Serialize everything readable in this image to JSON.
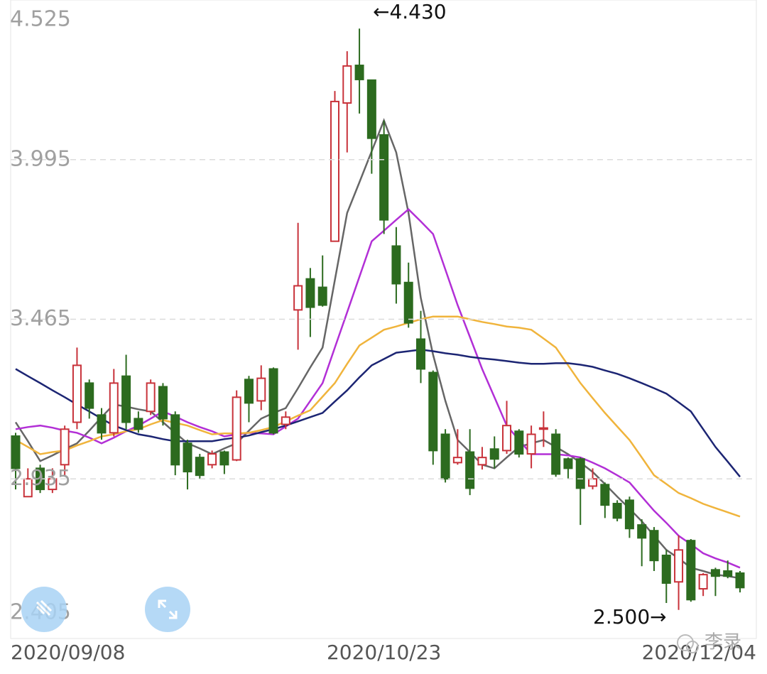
{
  "chart_data": {
    "type": "candlestick",
    "categories": [
      "2020/09/08",
      null,
      null,
      null,
      null,
      null,
      null,
      null,
      null,
      null,
      null,
      null,
      null,
      null,
      null,
      null,
      null,
      null,
      null,
      null,
      null,
      null,
      null,
      null,
      null,
      null,
      null,
      null,
      null,
      null,
      "2020/10/23",
      null,
      null,
      null,
      null,
      null,
      null,
      null,
      null,
      null,
      null,
      null,
      null,
      null,
      null,
      null,
      null,
      null,
      null,
      null,
      null,
      null,
      null,
      null,
      null,
      null,
      null,
      null,
      null,
      "2020/12/04"
    ],
    "open": [
      3.077,
      2.876,
      2.97,
      2.9,
      2.982,
      3.123,
      3.253,
      3.147,
      3.088,
      3.276,
      3.135,
      3.159,
      3.241,
      3.147,
      3.053,
      3.006,
      2.982,
      3.024,
      2.998,
      3.265,
      3.194,
      3.3,
      3.116,
      3.496,
      3.599,
      3.571,
      3.724,
      4.183,
      4.308,
      4.259,
      4.077,
      3.708,
      3.587,
      3.399,
      3.288,
      3.083,
      2.989,
      3.024,
      2.982,
      3.034,
      3.029,
      3.093,
      3.018,
      3.1,
      3.083,
      3.001,
      3.001,
      2.911,
      2.916,
      2.853,
      2.864,
      2.782,
      2.763,
      2.681,
      2.593,
      2.73,
      2.57,
      2.633,
      2.629,
      2.622
    ],
    "high": [
      3.088,
      2.97,
      2.982,
      2.97,
      3.112,
      3.371,
      3.265,
      3.17,
      3.3,
      3.347,
      3.159,
      3.265,
      3.253,
      3.159,
      3.065,
      3.018,
      3.029,
      3.029,
      3.229,
      3.277,
      3.312,
      3.305,
      3.159,
      3.785,
      3.635,
      3.677,
      4.223,
      4.355,
      4.43,
      4.259,
      4.125,
      3.771,
      3.653,
      3.493,
      3.295,
      3.1,
      3.1,
      3.1,
      3.041,
      3.076,
      3.194,
      3.1,
      3.112,
      3.159,
      3.1,
      3.006,
      3.006,
      2.97,
      2.923,
      2.864,
      2.876,
      2.801,
      2.775,
      2.699,
      2.747,
      2.735,
      2.622,
      2.64,
      2.664,
      2.629
    ],
    "low": [
      2.9,
      2.876,
      2.888,
      2.888,
      2.947,
      3.1,
      3.135,
      3.065,
      3.076,
      3.1,
      3.088,
      3.147,
      3.112,
      2.947,
      2.9,
      2.935,
      2.97,
      2.951,
      2.994,
      3.123,
      3.163,
      3.083,
      3.1,
      3.364,
      3.406,
      3.507,
      3.724,
      4.019,
      4.148,
      3.948,
      3.748,
      3.517,
      3.437,
      3.253,
      2.982,
      2.923,
      2.982,
      2.881,
      2.966,
      2.97,
      3.018,
      3.006,
      2.97,
      3.041,
      2.942,
      2.935,
      2.782,
      2.9,
      2.805,
      2.794,
      2.739,
      2.645,
      2.629,
      2.523,
      2.5,
      2.527,
      2.546,
      2.546,
      2.605,
      2.558
    ],
    "close": [
      2.97,
      2.935,
      2.9,
      2.935,
      3.1,
      3.312,
      3.17,
      3.088,
      3.253,
      3.123,
      3.1,
      3.253,
      3.135,
      2.982,
      2.959,
      2.947,
      3.018,
      2.982,
      3.206,
      3.187,
      3.269,
      3.088,
      3.14,
      3.576,
      3.505,
      3.512,
      4.188,
      4.306,
      4.261,
      4.066,
      3.795,
      3.583,
      3.453,
      3.3,
      3.029,
      2.935,
      3.006,
      2.904,
      3.006,
      3.001,
      3.112,
      3.018,
      3.083,
      3.104,
      2.951,
      2.97,
      2.904,
      2.935,
      2.848,
      2.805,
      2.77,
      2.739,
      2.664,
      2.589,
      2.699,
      2.534,
      2.617,
      2.612,
      2.612,
      2.574
    ],
    "up_color": "#c8323a",
    "down_color": "#2c6b1f",
    "series": [
      {
        "color": "#666666",
        "values": [
          3.123,
          3.06,
          2.994,
          3.013,
          3.034,
          3.053,
          3.095,
          3.14,
          3.182,
          3.175,
          3.166,
          3.159,
          3.123,
          3.088,
          3.053,
          3.036,
          3.017,
          3.036,
          3.053,
          3.095,
          3.135,
          3.154,
          3.17,
          3.236,
          3.305,
          3.371,
          3.595,
          3.818,
          3.92,
          4.023,
          4.125,
          4.019,
          3.818,
          3.536,
          3.347,
          3.194,
          3.064,
          3.024,
          2.982,
          2.97,
          3.006,
          3.041,
          3.053,
          3.064,
          3.041,
          3.017,
          2.989,
          2.958,
          2.918,
          2.876,
          2.836,
          2.794,
          2.746,
          2.699,
          2.671,
          2.64,
          2.629,
          2.617,
          2.612,
          2.605
        ]
      },
      {
        "color": "#b22fd6",
        "values": [
          3.1,
          3.107,
          3.112,
          3.105,
          3.095,
          3.088,
          3.072,
          3.053,
          3.072,
          3.093,
          3.112,
          3.135,
          3.159,
          3.142,
          3.123,
          3.107,
          3.093,
          3.076,
          3.083,
          3.088,
          3.086,
          3.083,
          3.109,
          3.135,
          3.194,
          3.253,
          3.371,
          3.488,
          3.606,
          3.724,
          3.759,
          3.795,
          3.83,
          3.79,
          3.748,
          3.63,
          3.512,
          3.406,
          3.3,
          3.206,
          3.112,
          3.064,
          3.017,
          3.017,
          3.017,
          3.013,
          3.006,
          2.989,
          2.97,
          2.947,
          2.923,
          2.876,
          2.829,
          2.789,
          2.746,
          2.718,
          2.688,
          2.671,
          2.657,
          2.64
        ]
      },
      {
        "color": "#f0b43c",
        "values": [
          3.064,
          3.041,
          3.017,
          3.024,
          3.029,
          3.046,
          3.06,
          3.076,
          3.083,
          3.093,
          3.1,
          3.116,
          3.13,
          3.121,
          3.112,
          3.097,
          3.083,
          3.086,
          3.086,
          3.088,
          3.097,
          3.107,
          3.126,
          3.145,
          3.163,
          3.208,
          3.253,
          3.317,
          3.378,
          3.404,
          3.43,
          3.441,
          3.453,
          3.465,
          3.474,
          3.474,
          3.474,
          3.465,
          3.456,
          3.449,
          3.441,
          3.437,
          3.43,
          3.401,
          3.371,
          3.312,
          3.253,
          3.203,
          3.154,
          3.109,
          3.064,
          3.006,
          2.947,
          2.918,
          2.888,
          2.871,
          2.852,
          2.838,
          2.824,
          2.81
        ]
      },
      {
        "color": "#1c2573",
        "values": [
          3.3,
          3.276,
          3.253,
          3.229,
          3.206,
          3.182,
          3.159,
          3.135,
          3.112,
          3.097,
          3.083,
          3.076,
          3.067,
          3.06,
          3.06,
          3.06,
          3.06,
          3.067,
          3.072,
          3.079,
          3.09,
          3.1,
          3.112,
          3.126,
          3.14,
          3.154,
          3.192,
          3.229,
          3.272,
          3.312,
          3.333,
          3.354,
          3.359,
          3.364,
          3.359,
          3.352,
          3.347,
          3.34,
          3.335,
          3.331,
          3.326,
          3.321,
          3.317,
          3.317,
          3.319,
          3.319,
          3.314,
          3.307,
          3.295,
          3.284,
          3.269,
          3.253,
          3.236,
          3.218,
          3.189,
          3.159,
          3.1,
          3.041,
          2.992,
          2.942
        ]
      }
    ],
    "ylim": [
      2.405,
      4.525
    ],
    "yticks": [
      2.405,
      2.935,
      3.465,
      3.995,
      4.525
    ],
    "grid": true,
    "annotations": [
      {
        "text": "←4.430"
      },
      {
        "text": "2.500→"
      }
    ]
  },
  "watermark": "李录"
}
